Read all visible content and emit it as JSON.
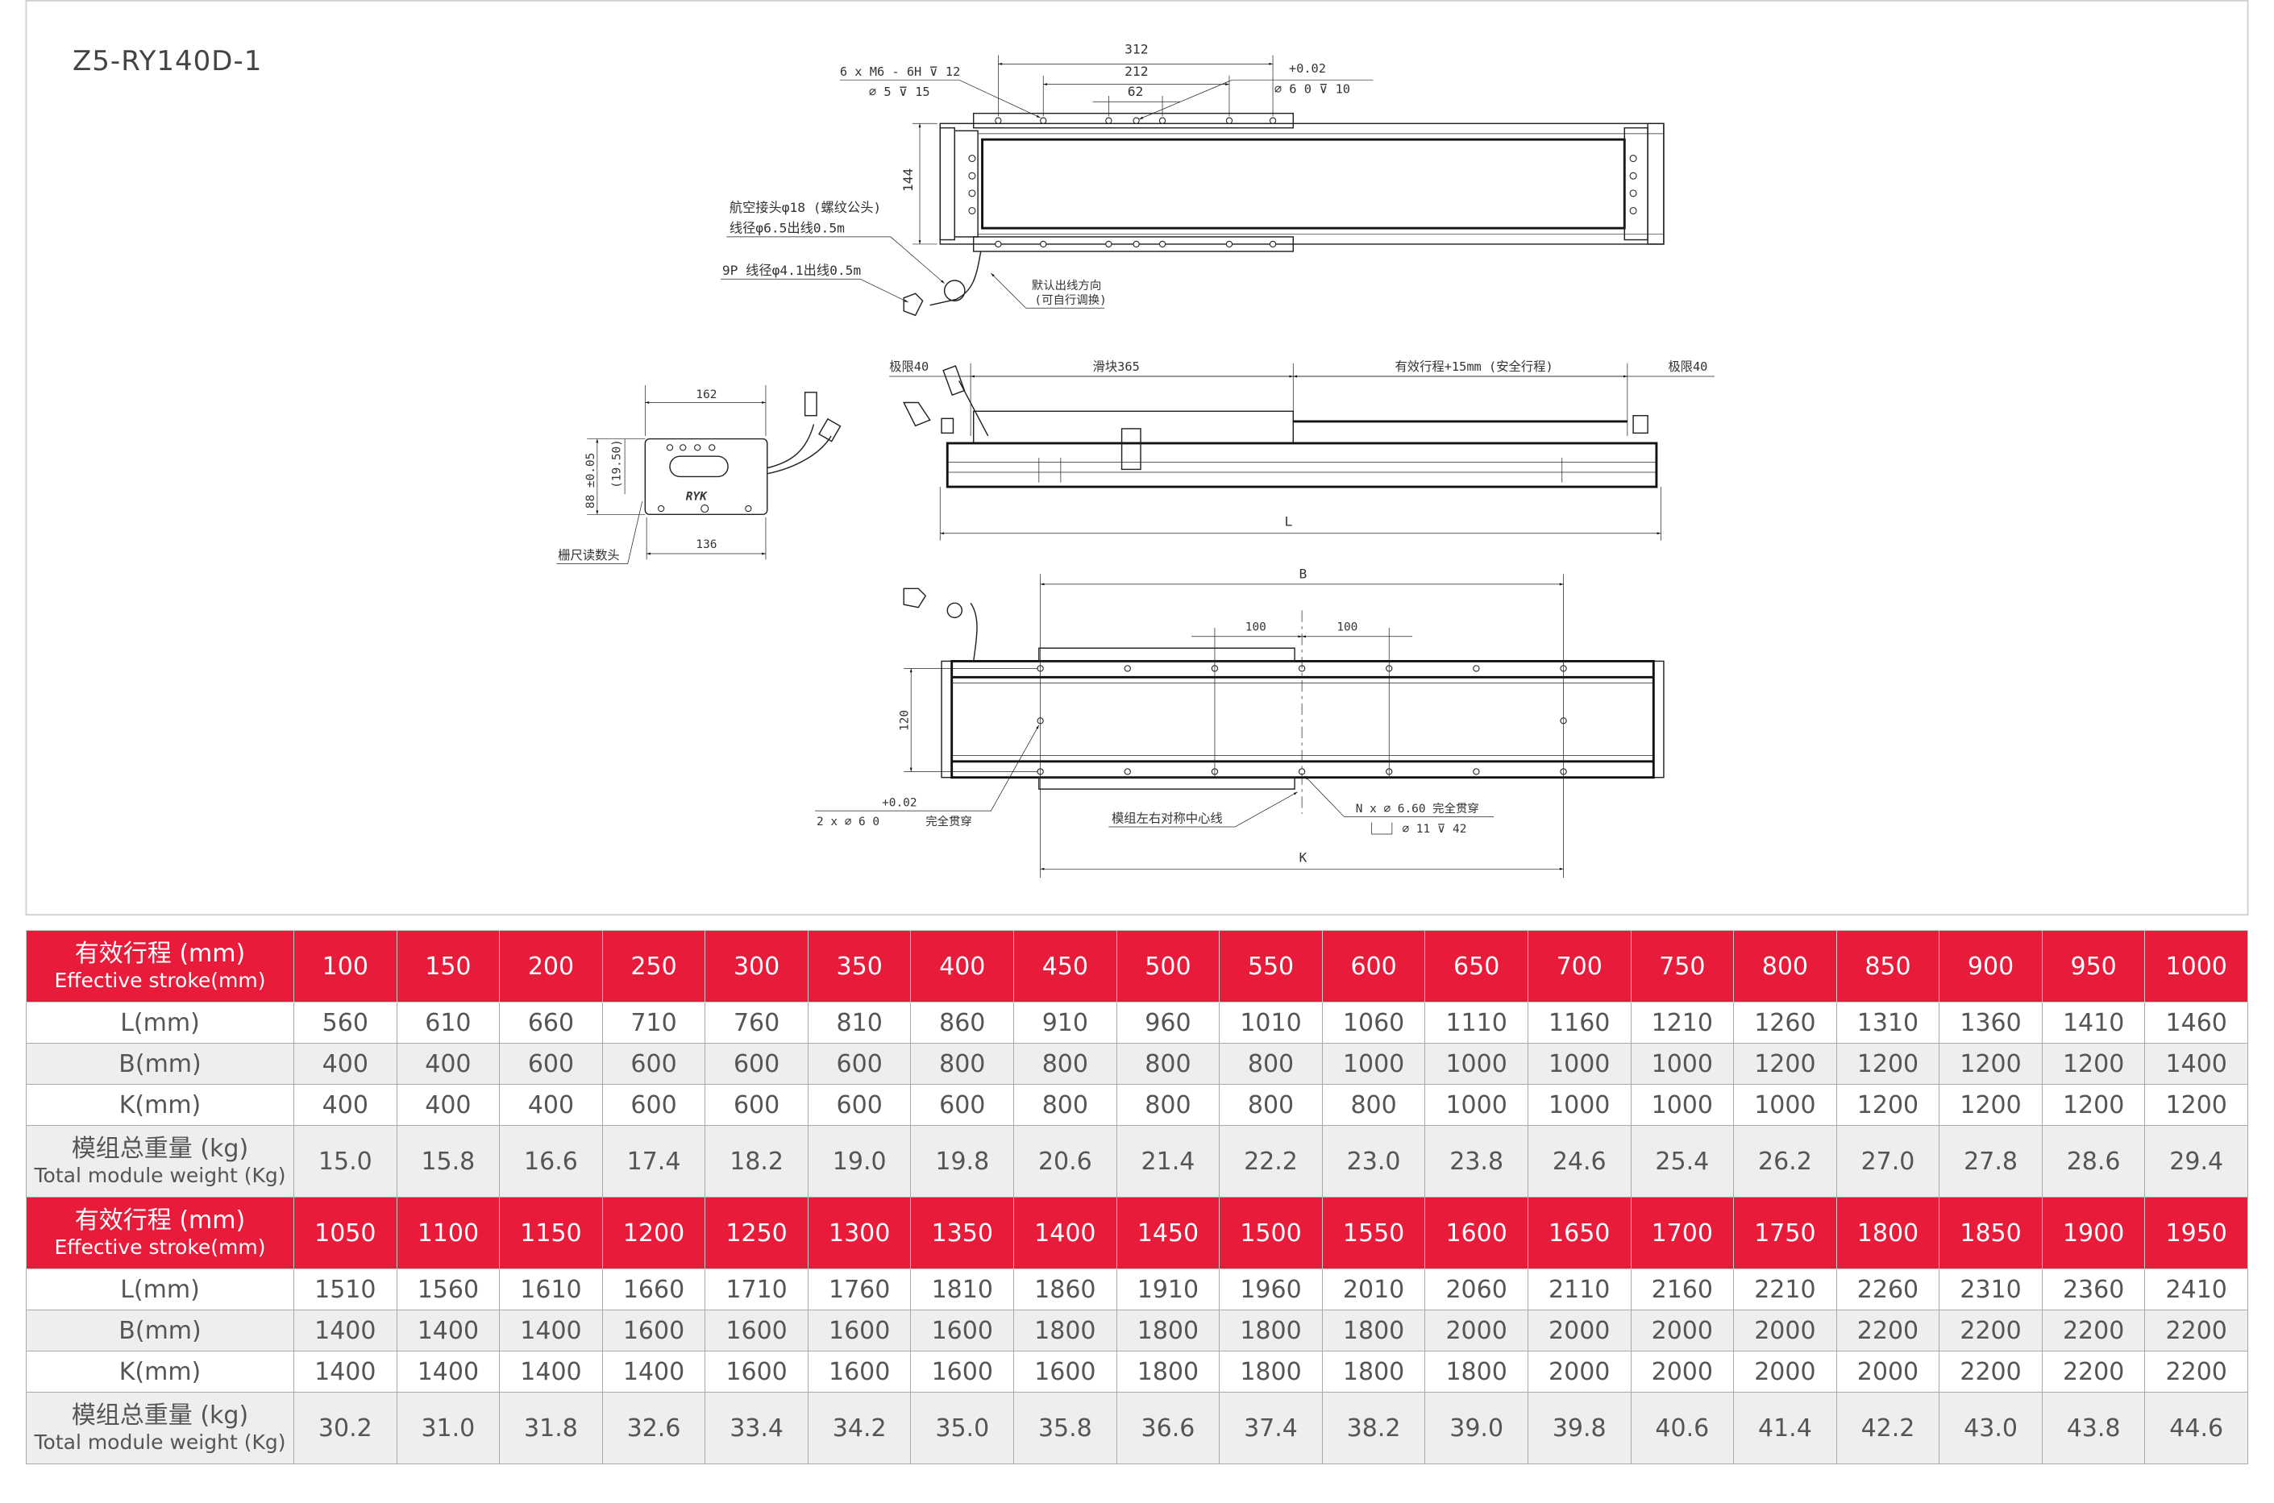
{
  "title": "Z5-RY140D-1",
  "drawing": {
    "top_view": {
      "dim_312": "312",
      "dim_212": "212",
      "dim_62": "62",
      "dim_144": "144",
      "thread_note_1": "6 x  M6 - 6H ⊽ 12",
      "thread_note_2": "⌀ 5 ⊽ 15",
      "pin_tol": "+0.02",
      "pin_note": "⌀ 6  0   ⊽ 10",
      "connector_note_1": "航空接头φ18 (螺纹公头)",
      "connector_note_2": "线径φ6.5出线0.5m",
      "cable_note": "9P 线径φ4.1出线0.5m",
      "direction_note_1": "默认出线方向",
      "direction_note_2": "(可自行调换)"
    },
    "end_view": {
      "dim_162": "162",
      "dim_136": "136",
      "dim_88": "88 ±0.05",
      "dim_1950": "(19.50)",
      "logo": "RYK",
      "reader_note": "栅尺读数头"
    },
    "front_view": {
      "limit_left": "极限40",
      "slider": "滑块365",
      "stroke": "有效行程+15mm (安全行程)",
      "limit_right": "极限40",
      "dim_L": "L"
    },
    "bottom_view": {
      "dim_B": "B",
      "dim_100a": "100",
      "dim_100b": "100",
      "dim_120": "120",
      "dim_K": "K",
      "pin_tol": "+0.02",
      "pin_note": "2 x ⌀ 6  0",
      "pin_through": "完全贯穿",
      "center_note": "模组左右对称中心线",
      "hole_note_1": "N x ⌀ 6.60 完全贯穿",
      "hole_note_2": "⌀ 11 ⊽ 42"
    }
  },
  "table": {
    "labels": {
      "stroke_cn": "有效行程 (mm)",
      "stroke_en": "Effective stroke(mm)",
      "L": "L(mm)",
      "B": "B(mm)",
      "K": "K(mm)",
      "weight_cn": "模组总重量 (kg)",
      "weight_en": "Total module weight (Kg)"
    },
    "blocks": [
      {
        "stroke": [
          "100",
          "150",
          "200",
          "250",
          "300",
          "350",
          "400",
          "450",
          "500",
          "550",
          "600",
          "650",
          "700",
          "750",
          "800",
          "850",
          "900",
          "950",
          "1000"
        ],
        "L": [
          "560",
          "610",
          "660",
          "710",
          "760",
          "810",
          "860",
          "910",
          "960",
          "1010",
          "1060",
          "1110",
          "1160",
          "1210",
          "1260",
          "1310",
          "1360",
          "1410",
          "1460"
        ],
        "B": [
          "400",
          "400",
          "600",
          "600",
          "600",
          "600",
          "800",
          "800",
          "800",
          "800",
          "1000",
          "1000",
          "1000",
          "1000",
          "1200",
          "1200",
          "1200",
          "1200",
          "1400"
        ],
        "K": [
          "400",
          "400",
          "400",
          "600",
          "600",
          "600",
          "600",
          "800",
          "800",
          "800",
          "800",
          "1000",
          "1000",
          "1000",
          "1000",
          "1200",
          "1200",
          "1200",
          "1200"
        ],
        "weight": [
          "15.0",
          "15.8",
          "16.6",
          "17.4",
          "18.2",
          "19.0",
          "19.8",
          "20.6",
          "21.4",
          "22.2",
          "23.0",
          "23.8",
          "24.6",
          "25.4",
          "26.2",
          "27.0",
          "27.8",
          "28.6",
          "29.4"
        ]
      },
      {
        "stroke": [
          "1050",
          "1100",
          "1150",
          "1200",
          "1250",
          "1300",
          "1350",
          "1400",
          "1450",
          "1500",
          "1550",
          "1600",
          "1650",
          "1700",
          "1750",
          "1800",
          "1850",
          "1900",
          "1950"
        ],
        "L": [
          "1510",
          "1560",
          "1610",
          "1660",
          "1710",
          "1760",
          "1810",
          "1860",
          "1910",
          "1960",
          "2010",
          "2060",
          "2110",
          "2160",
          "2210",
          "2260",
          "2310",
          "2360",
          "2410"
        ],
        "B": [
          "1400",
          "1400",
          "1400",
          "1600",
          "1600",
          "1600",
          "1600",
          "1800",
          "1800",
          "1800",
          "1800",
          "2000",
          "2000",
          "2000",
          "2000",
          "2200",
          "2200",
          "2200",
          "2200"
        ],
        "K": [
          "1400",
          "1400",
          "1400",
          "1400",
          "1600",
          "1600",
          "1600",
          "1600",
          "1800",
          "1800",
          "1800",
          "1800",
          "2000",
          "2000",
          "2000",
          "2000",
          "2200",
          "2200",
          "2200"
        ],
        "weight": [
          "30.2",
          "31.0",
          "31.8",
          "32.6",
          "33.4",
          "34.2",
          "35.0",
          "35.8",
          "36.6",
          "37.4",
          "38.2",
          "39.0",
          "39.8",
          "40.6",
          "41.4",
          "42.2",
          "43.0",
          "43.8",
          "44.6"
        ]
      }
    ]
  },
  "colors": {
    "header_bg": "#e81c3a",
    "gray_row": "#eeeeee",
    "text": "#555555"
  }
}
